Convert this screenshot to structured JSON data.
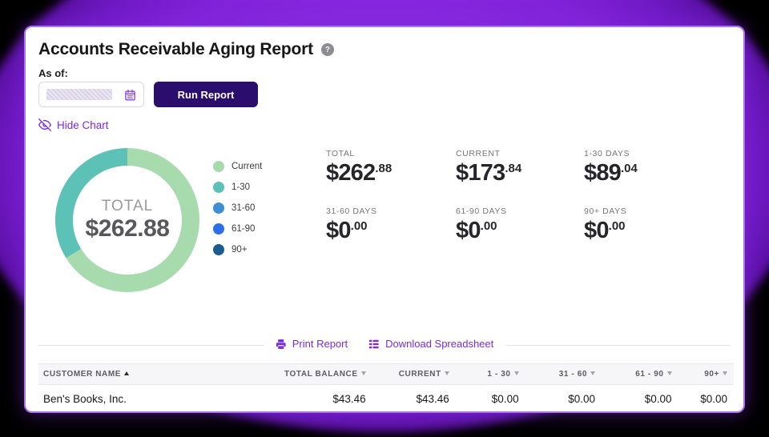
{
  "background": {
    "page_bg": "#000000",
    "blob_color": "#8a2be2"
  },
  "header": {
    "title": "Accounts Receivable Aging Report",
    "help_glyph": "?"
  },
  "filter": {
    "as_of_label": "As of:",
    "date_value": "",
    "run_report_label": "Run Report"
  },
  "chart_toggle": {
    "label": "Hide Chart"
  },
  "chart_data": {
    "type": "pie",
    "subtype": "donut",
    "title": "Accounts receivable aging breakdown",
    "total": 262.88,
    "center_label": "TOTAL",
    "center_value": "$262.88",
    "legend_position": "right",
    "segments": [
      {
        "name": "Current",
        "value": 173.84,
        "color": "#a7dbad"
      },
      {
        "name": "1-30",
        "value": 89.04,
        "color": "#5cc1b6"
      },
      {
        "name": "31-60",
        "value": 0,
        "color": "#3d8ed2"
      },
      {
        "name": "61-90",
        "value": 0,
        "color": "#2e6fe8"
      },
      {
        "name": "90+",
        "value": 0,
        "color": "#1d5a8f"
      }
    ]
  },
  "stats": [
    {
      "label": "TOTAL",
      "dollars": "$262",
      "cents": ".88"
    },
    {
      "label": "CURRENT",
      "dollars": "$173",
      "cents": ".84"
    },
    {
      "label": "1-30 DAYS",
      "dollars": "$89",
      "cents": ".04"
    },
    {
      "label": "31-60 DAYS",
      "dollars": "$0",
      "cents": ".00"
    },
    {
      "label": "61-90 DAYS",
      "dollars": "$0",
      "cents": ".00"
    },
    {
      "label": "90+ DAYS",
      "dollars": "$0",
      "cents": ".00"
    }
  ],
  "actions": {
    "print_label": "Print Report",
    "download_label": "Download Spreadsheet"
  },
  "table": {
    "columns": [
      {
        "label": "CUSTOMER NAME",
        "sort": "asc"
      },
      {
        "label": "TOTAL BALANCE",
        "sort": "desc"
      },
      {
        "label": "CURRENT",
        "sort": "desc"
      },
      {
        "label": "1 - 30",
        "sort": "desc"
      },
      {
        "label": "31 - 60",
        "sort": "desc"
      },
      {
        "label": "61 - 90",
        "sort": "desc"
      },
      {
        "label": "90+",
        "sort": "desc"
      }
    ],
    "rows": [
      {
        "customer": "Ben's Books, Inc.",
        "total_balance": "$43.46",
        "current": "$43.46",
        "d1_30": "$0.00",
        "d31_60": "$0.00",
        "d61_90": "$0.00",
        "d90_plus": "$0.00"
      }
    ]
  }
}
